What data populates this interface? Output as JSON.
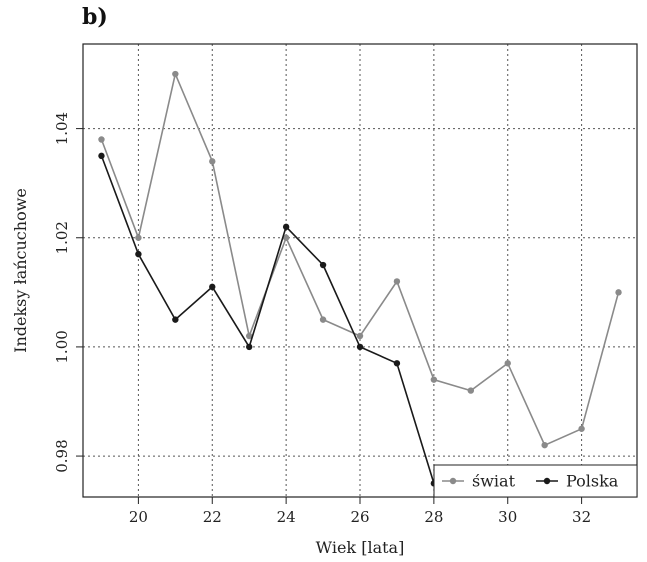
{
  "panel_label": "b)",
  "chart_data": {
    "type": "line",
    "xlabel": "Wiek [lata]",
    "ylabel": "Indeksy łańcuchowe",
    "xlim": [
      18.5,
      33.5
    ],
    "ylim": [
      0.9725,
      1.0555
    ],
    "x_ticks": [
      20,
      22,
      24,
      26,
      28,
      30,
      32
    ],
    "y_ticks": [
      0.98,
      1.0,
      1.02,
      1.04
    ],
    "x_tick_labels": [
      "20",
      "22",
      "24",
      "26",
      "28",
      "30",
      "32"
    ],
    "y_tick_labels": [
      "0.98",
      "1.00",
      "1.02",
      "1.04"
    ],
    "grid": true,
    "legend_position": "bottom-right",
    "series": [
      {
        "name": "świat",
        "color": "#8a8a8a",
        "x": [
          19,
          20,
          21,
          22,
          23,
          24,
          25,
          26,
          27,
          28,
          29,
          30,
          31,
          32,
          33
        ],
        "y": [
          1.038,
          1.02,
          1.05,
          1.034,
          1.002,
          1.02,
          1.005,
          1.002,
          1.012,
          0.994,
          0.992,
          0.997,
          0.982,
          0.985,
          1.01
        ]
      },
      {
        "name": "Polska",
        "color": "#1a1a1a",
        "x": [
          19,
          20,
          21,
          22,
          23,
          24,
          25,
          26,
          27,
          28
        ],
        "y": [
          1.035,
          1.017,
          1.005,
          1.011,
          1.0,
          1.022,
          1.015,
          1.0,
          0.997,
          0.975
        ]
      }
    ]
  }
}
